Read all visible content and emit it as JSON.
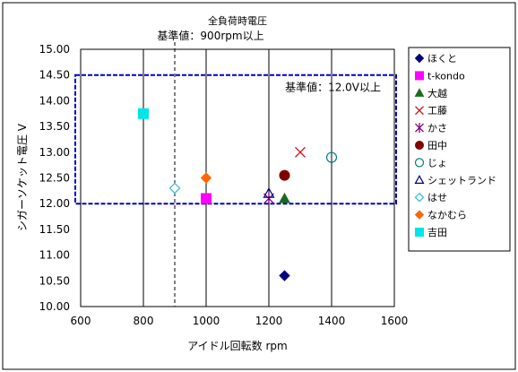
{
  "chart_data": {
    "type": "scatter",
    "title": "全負荷時電圧",
    "xlabel": "アイドル回転数 rpm",
    "ylabel": "シガーソケット電圧 V",
    "xlim": [
      600,
      1600
    ],
    "ylim": [
      10.0,
      15.0
    ],
    "xticks": [
      600,
      800,
      1000,
      1200,
      1400,
      1600
    ],
    "yticks": [
      10.0,
      10.5,
      11.0,
      11.5,
      12.0,
      12.5,
      13.0,
      13.5,
      14.0,
      14.5,
      15.0
    ],
    "x_tick_labels": [
      "600",
      "800",
      "1000",
      "1200",
      "1400",
      "1600"
    ],
    "y_tick_labels": [
      "10.00",
      "10.50",
      "11.00",
      "11.50",
      "12.00",
      "12.50",
      "13.00",
      "13.50",
      "14.00",
      "14.50",
      "15.00"
    ],
    "grid": "vertical",
    "legend_position": "right",
    "annotations": [
      {
        "text": "基準値：900rpm以上",
        "kind": "vline",
        "x": 900
      },
      {
        "text": "基準値：12.0V以上",
        "kind": "band",
        "y_range": [
          12.0,
          14.5
        ]
      }
    ],
    "series": [
      {
        "name": "ほくと",
        "marker": "diamond",
        "color": "#000080",
        "points": [
          {
            "x": 1250,
            "y": 10.6
          }
        ]
      },
      {
        "name": "t-kondo",
        "marker": "square",
        "color": "#ff00ff",
        "points": [
          {
            "x": 1000,
            "y": 12.1
          }
        ]
      },
      {
        "name": "大越",
        "marker": "triangle",
        "color": "#1a6b1a",
        "points": [
          {
            "x": 1250,
            "y": 12.1
          }
        ]
      },
      {
        "name": "工藤",
        "marker": "x",
        "color": "#d01010",
        "points": [
          {
            "x": 1300,
            "y": 13.0
          }
        ]
      },
      {
        "name": "かさ",
        "marker": "star",
        "color": "#800080",
        "points": [
          {
            "x": 1200,
            "y": 12.1
          }
        ]
      },
      {
        "name": "田中",
        "marker": "circle",
        "color": "#800000",
        "points": [
          {
            "x": 1250,
            "y": 12.55
          }
        ]
      },
      {
        "name": "じょ",
        "marker": "circle-open",
        "color": "#008080",
        "points": [
          {
            "x": 1400,
            "y": 12.9
          }
        ]
      },
      {
        "name": "シェットランド",
        "marker": "triangle-open",
        "color": "#000080",
        "points": [
          {
            "x": 1200,
            "y": 12.2
          }
        ]
      },
      {
        "name": "はせ",
        "marker": "diamond-open",
        "color": "#33bbdd",
        "points": [
          {
            "x": 900,
            "y": 12.3
          }
        ]
      },
      {
        "name": "なかむら",
        "marker": "diamond",
        "color": "#ff6600",
        "points": [
          {
            "x": 1000,
            "y": 12.5
          }
        ]
      },
      {
        "name": "吉田",
        "marker": "square",
        "color": "#00e5e5",
        "points": [
          {
            "x": 800,
            "y": 13.75
          }
        ]
      }
    ]
  }
}
